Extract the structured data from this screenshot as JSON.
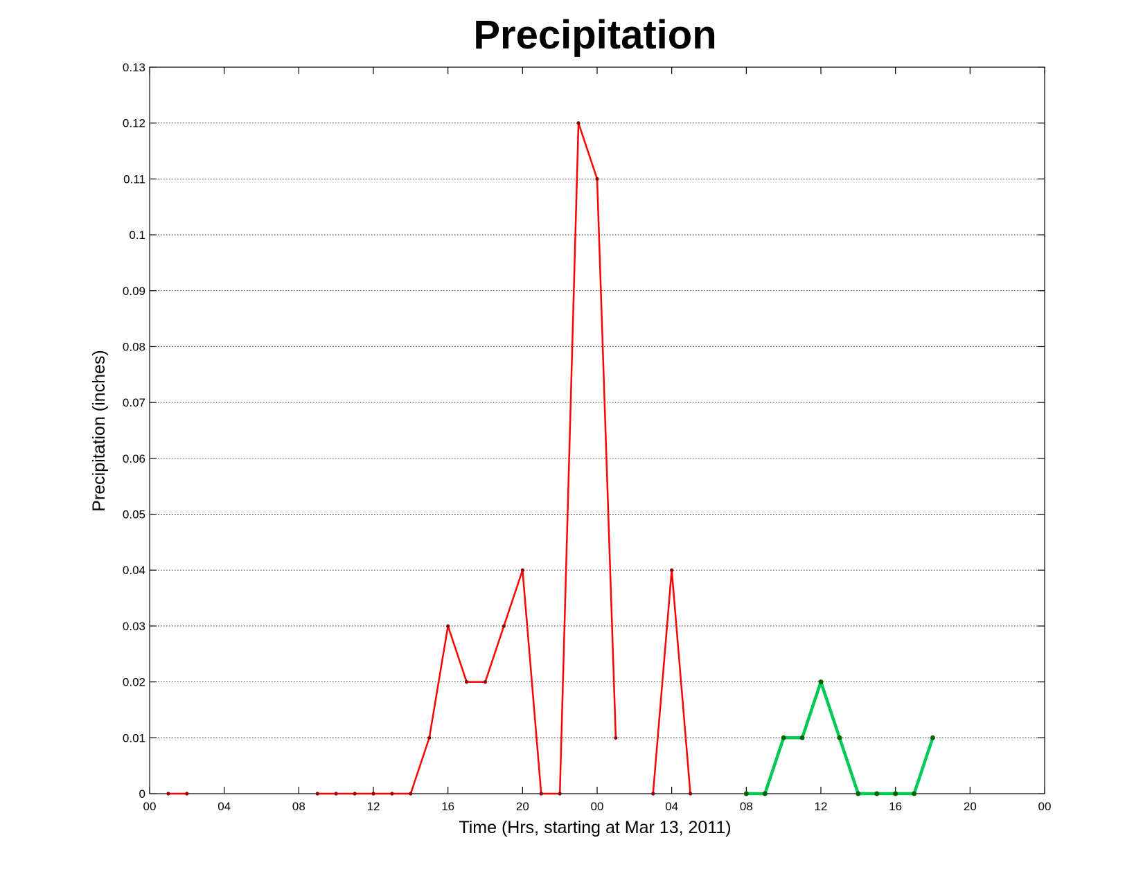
{
  "chart_data": {
    "type": "line",
    "title": "Precipitation",
    "xlabel": "Time (Hrs, starting at Mar 13, 2011)",
    "ylabel": "Precipitation (inches)",
    "xlim": [
      0,
      48
    ],
    "ylim": [
      0,
      0.13
    ],
    "x_ticks": [
      0,
      4,
      8,
      12,
      16,
      20,
      24,
      28,
      32,
      36,
      40,
      44,
      48
    ],
    "x_tick_labels": [
      "00",
      "04",
      "08",
      "12",
      "16",
      "20",
      "00",
      "04",
      "08",
      "12",
      "16",
      "20",
      "00"
    ],
    "y_ticks": [
      0,
      0.01,
      0.02,
      0.03,
      0.04,
      0.05,
      0.06,
      0.07,
      0.08,
      0.09,
      0.1,
      0.11,
      0.12,
      0.13
    ],
    "y_tick_labels": [
      "0",
      "0.01",
      "0.02",
      "0.03",
      "0.04",
      "0.05",
      "0.06",
      "0.07",
      "0.08",
      "0.09",
      "0.1",
      "0.11",
      "0.12",
      "0.13"
    ],
    "grid": "y-dotted",
    "series": [
      {
        "color": "#ff0000",
        "marker_color": "#8b0000",
        "style": "thin",
        "segments": [
          {
            "x": [
              1,
              2
            ],
            "y": [
              0,
              0
            ]
          },
          {
            "x": [
              9,
              10,
              11,
              12,
              13,
              14,
              15,
              16,
              17,
              18,
              19,
              20,
              21,
              22,
              23,
              24,
              25
            ],
            "y": [
              0,
              0,
              0,
              0,
              0,
              0,
              0.01,
              0.03,
              0.02,
              0.02,
              0.03,
              0.04,
              0,
              0,
              0.12,
              0.11,
              0.01
            ]
          },
          {
            "x": [
              27,
              28,
              29
            ],
            "y": [
              0,
              0.04,
              0
            ]
          }
        ]
      },
      {
        "color": "#00c957",
        "marker_color": "#006400",
        "style": "thick",
        "segments": [
          {
            "x": [
              32,
              33,
              34,
              35,
              36,
              37,
              38,
              39,
              40,
              41,
              42
            ],
            "y": [
              0,
              0,
              0.01,
              0.01,
              0.02,
              0.01,
              0,
              0,
              0,
              0,
              0.01
            ]
          }
        ]
      }
    ]
  }
}
